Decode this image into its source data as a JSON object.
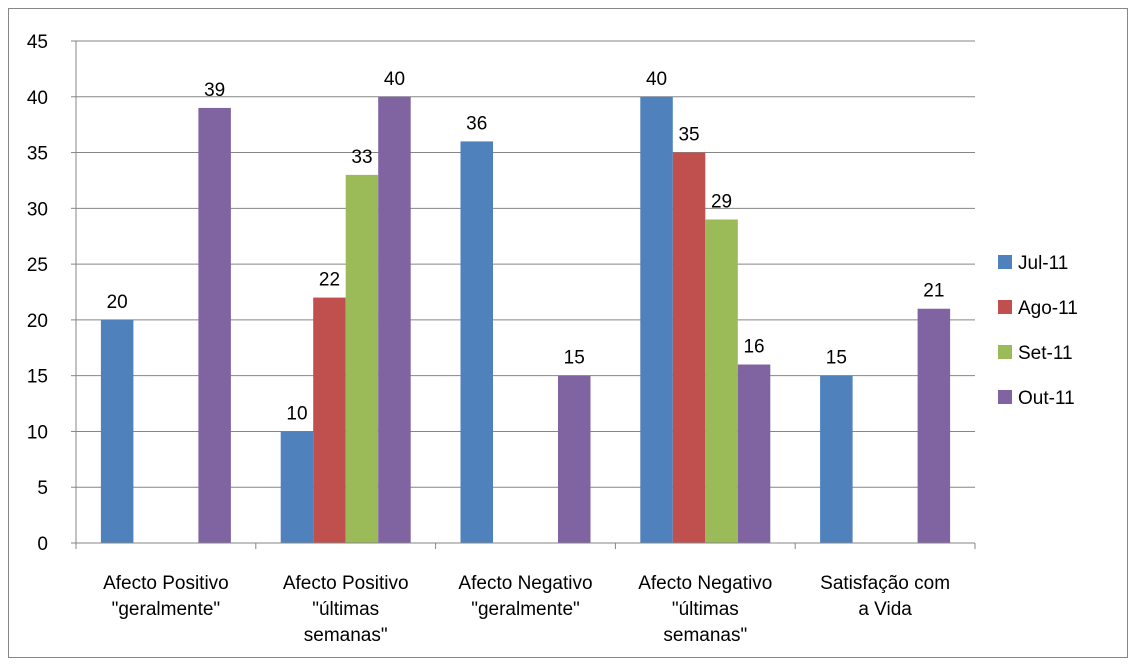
{
  "chart_data": {
    "type": "bar",
    "categories": [
      [
        "Afecto Positivo",
        "\"geralmente\""
      ],
      [
        "Afecto Positivo",
        "\"últimas",
        "semanas\""
      ],
      [
        "Afecto Negativo",
        "\"geralmente\""
      ],
      [
        "Afecto Negativo",
        "\"últimas",
        "semanas\""
      ],
      [
        "Satisfação com",
        "a Vida"
      ]
    ],
    "series": [
      {
        "name": "Jul-11",
        "color": "#4F81BD",
        "values": [
          20,
          10,
          36,
          40,
          15
        ]
      },
      {
        "name": "Ago-11",
        "color": "#C0504D",
        "values": [
          null,
          22,
          null,
          35,
          null
        ]
      },
      {
        "name": "Set-11",
        "color": "#9BBB59",
        "values": [
          null,
          33,
          null,
          29,
          null
        ]
      },
      {
        "name": "Out-11",
        "color": "#8064A2",
        "values": [
          39,
          40,
          15,
          16,
          21
        ]
      }
    ],
    "ylim": [
      0,
      45
    ],
    "yticks": [
      0,
      5,
      10,
      15,
      20,
      25,
      30,
      35,
      40,
      45
    ],
    "grid": true,
    "legend": "right",
    "data_labels": true
  }
}
